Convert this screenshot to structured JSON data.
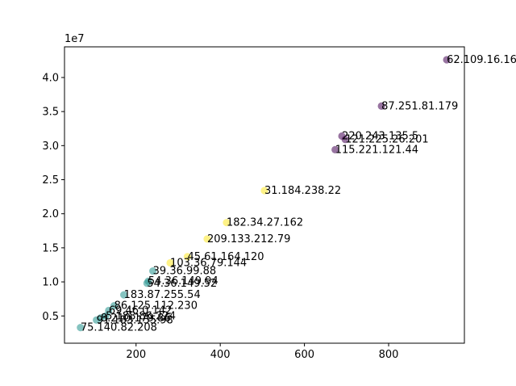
{
  "chart_data": {
    "type": "scatter",
    "title": "",
    "xlabel": "",
    "ylabel": "",
    "y_offset_label": "1e7",
    "xlim": [
      30,
      980
    ],
    "ylim": [
      1000000,
      44500000
    ],
    "x_ticks": [
      200,
      400,
      600,
      800
    ],
    "y_ticks": [
      5000000,
      10000000,
      15000000,
      20000000,
      25000000,
      30000000,
      35000000,
      40000000
    ],
    "y_tick_labels": [
      "0.5",
      "1.0",
      "1.5",
      "2.0",
      "2.5",
      "3.0",
      "3.5",
      "4.0"
    ],
    "grid": false,
    "legend": "none",
    "colors": {
      "purple": "#440154",
      "teal": "#21918c",
      "yellow": "#fde725"
    },
    "points": [
      {
        "label": "62.109.16.16",
        "x": 938,
        "y": 42600000,
        "color": "purple"
      },
      {
        "label": "87.251.81.179",
        "x": 783,
        "y": 35800000,
        "color": "purple"
      },
      {
        "label": "220.243.135.5",
        "x": 689,
        "y": 31400000,
        "color": "purple"
      },
      {
        "label": "121.225.26.201",
        "x": 697,
        "y": 30900000,
        "color": "purple"
      },
      {
        "label": "115.221.121.44",
        "x": 673,
        "y": 29400000,
        "color": "purple"
      },
      {
        "label": "31.184.238.22",
        "x": 505,
        "y": 23400000,
        "color": "yellow"
      },
      {
        "label": "182.34.27.162",
        "x": 415,
        "y": 18700000,
        "color": "yellow"
      },
      {
        "label": "209.133.212.79",
        "x": 369,
        "y": 16300000,
        "color": "yellow"
      },
      {
        "label": "45.61.164.120",
        "x": 322,
        "y": 13700000,
        "color": "yellow"
      },
      {
        "label": "103.36.79.144",
        "x": 281,
        "y": 12800000,
        "color": "yellow"
      },
      {
        "label": "39.36.99.88",
        "x": 240,
        "y": 11600000,
        "color": "teal"
      },
      {
        "label": "54.36.149.94",
        "x": 229,
        "y": 10100000,
        "color": "teal"
      },
      {
        "label": "54.36.149.52",
        "x": 226,
        "y": 9800000,
        "color": "teal"
      },
      {
        "label": "183.87.255.54",
        "x": 171,
        "y": 8100000,
        "color": "teal"
      },
      {
        "label": "86.125.112.230",
        "x": 148,
        "y": 6500000,
        "color": "teal"
      },
      {
        "label": "69.46.0.142",
        "x": 135,
        "y": 5800000,
        "color": "teal"
      },
      {
        "label": "5.188.86.224",
        "x": 128,
        "y": 5000000,
        "color": "teal"
      },
      {
        "label": "8.210.179.86",
        "x": 116,
        "y": 4700000,
        "color": "teal"
      },
      {
        "label": "91.183.155.98",
        "x": 106,
        "y": 4400000,
        "color": "teal"
      },
      {
        "label": "75.140.82.208",
        "x": 68,
        "y": 3300000,
        "color": "teal"
      }
    ]
  }
}
